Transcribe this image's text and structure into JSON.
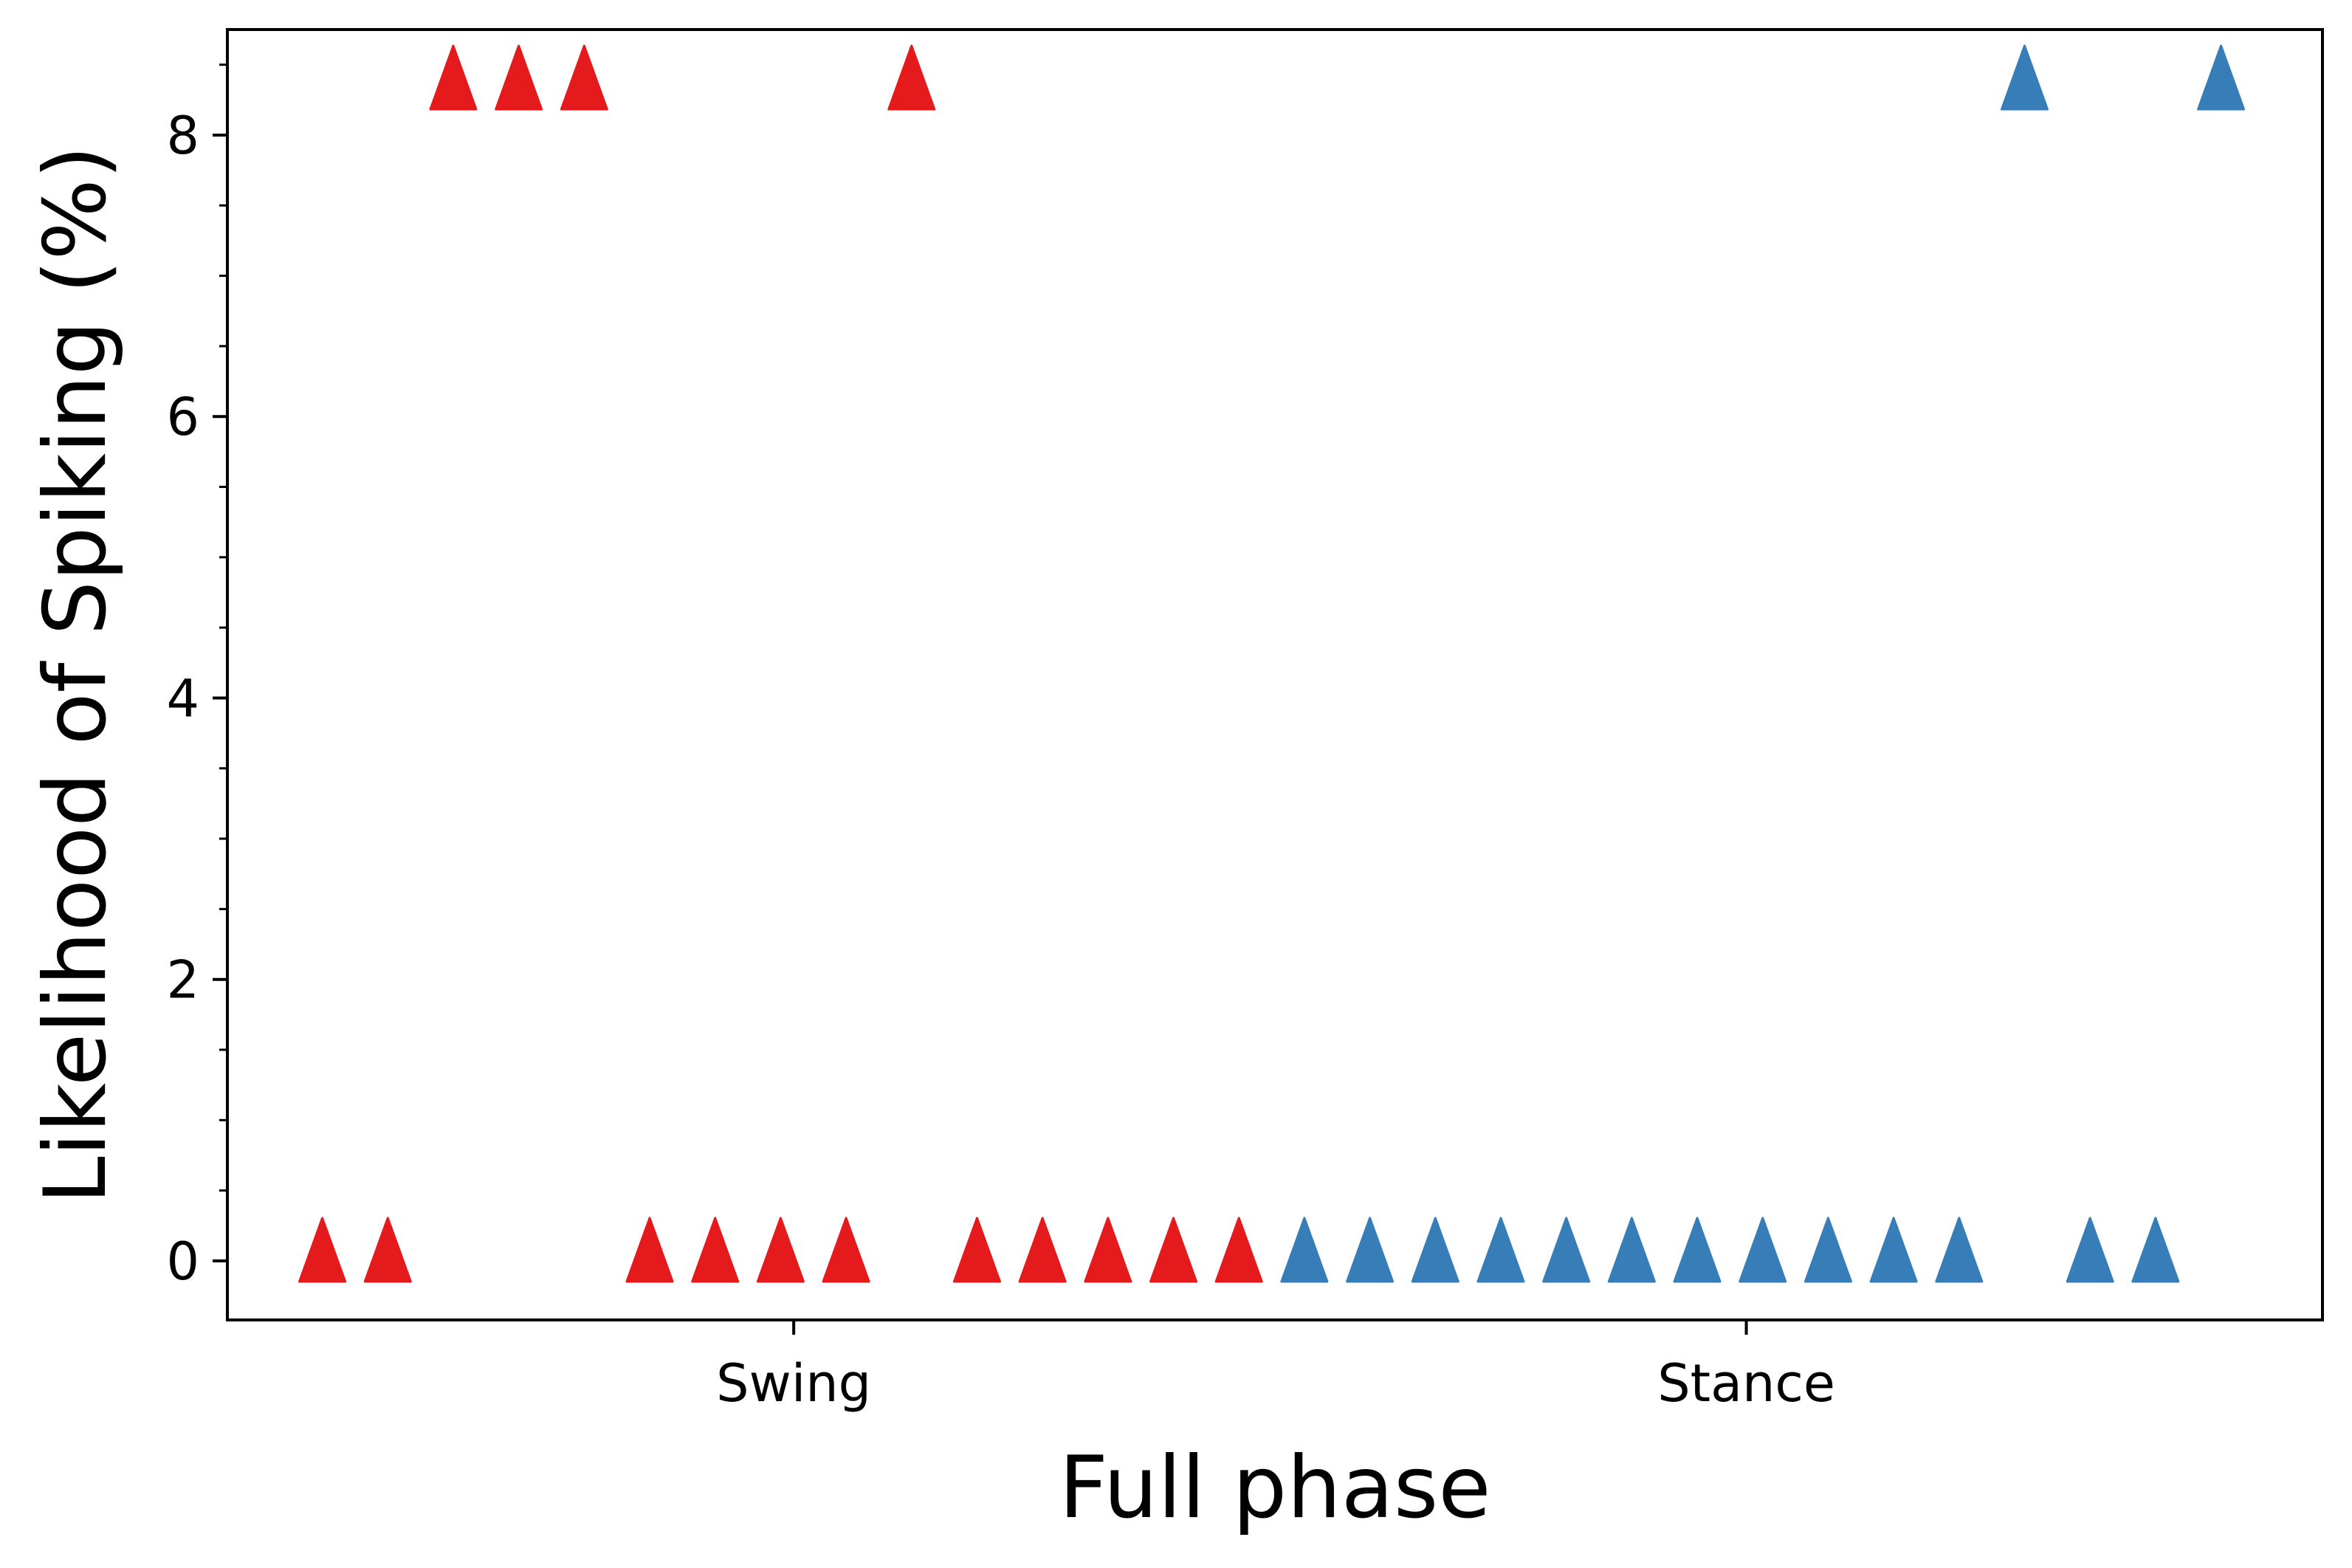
{
  "chart_data": {
    "type": "scatter",
    "xlabel": "Full phase",
    "ylabel": "Likelihood of Spiking (%)",
    "ylim": [
      -0.42,
      8.75
    ],
    "xlim": [
      0,
      32
    ],
    "y_ticks": [
      0,
      2,
      4,
      6,
      8
    ],
    "y_minor_step": 0.5,
    "x_ticks": [
      {
        "value": 8.65,
        "label": "Swing"
      },
      {
        "value": 23.2,
        "label": "Stance"
      }
    ],
    "grid": false,
    "marker": "triangle-up",
    "series": [
      {
        "color": "#e41a1c",
        "x": [
          1.45,
          2.45,
          3.45,
          4.45,
          5.45,
          6.45,
          7.45,
          8.45,
          9.45,
          10.45,
          11.45,
          12.45,
          13.45,
          14.45,
          15.45
        ],
        "y": [
          0,
          0,
          8.33,
          8.33,
          8.33,
          0,
          0,
          0,
          0,
          8.33,
          0,
          0,
          0,
          0,
          0
        ]
      },
      {
        "color": "#377eb8",
        "x": [
          16.45,
          17.45,
          18.45,
          19.45,
          20.45,
          21.45,
          22.45,
          23.45,
          24.45,
          25.45,
          26.45,
          27.45,
          28.45,
          29.45,
          30.45
        ],
        "y": [
          0,
          0,
          0,
          0,
          0,
          0,
          0,
          0,
          0,
          0,
          0,
          8.33,
          0,
          0,
          8.33
        ]
      }
    ]
  }
}
